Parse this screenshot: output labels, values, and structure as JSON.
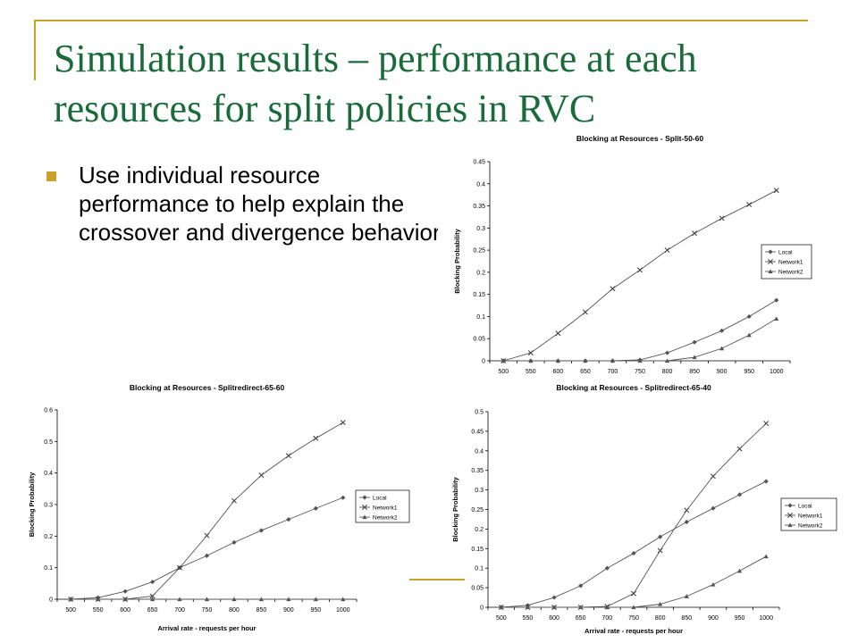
{
  "slide": {
    "title": "Simulation results – performance at each resources for split policies in RVC",
    "bullet": "Use individual resource performance to help explain the crossover and divergence behavior",
    "colors": {
      "title": "#1a6b3a",
      "accent": "#c9a227"
    }
  },
  "chart_data": [
    {
      "type": "line",
      "title": "Blocking at Resources - Split-50-60",
      "xlabel": "",
      "ylabel": "Blocking Probability",
      "x": [
        500,
        550,
        600,
        650,
        700,
        750,
        800,
        850,
        900,
        950,
        1000
      ],
      "ylim": [
        0,
        0.45
      ],
      "yticks": [
        0,
        0.05,
        0.1,
        0.15,
        0.2,
        0.25,
        0.3,
        0.35,
        0.4,
        0.45
      ],
      "legend": "right",
      "series": [
        {
          "name": "Local",
          "marker": "diamond",
          "values": [
            0,
            0,
            0,
            0,
            0,
            0.002,
            0.018,
            0.042,
            0.068,
            0.1,
            0.137
          ]
        },
        {
          "name": "Network1",
          "marker": "x",
          "values": [
            0,
            0.018,
            0.062,
            0.11,
            0.163,
            0.205,
            0.25,
            0.288,
            0.322,
            0.353,
            0.385
          ]
        },
        {
          "name": "Network2",
          "marker": "triangle",
          "values": [
            0,
            0,
            0,
            0,
            0,
            0,
            0,
            0.008,
            0.028,
            0.058,
            0.095
          ]
        }
      ]
    },
    {
      "type": "line",
      "title": "Blocking at Resources - Splitredirect-65-60",
      "xlabel": "Arrival rate - requests per hour",
      "ylabel": "Blocking Probability",
      "x": [
        500,
        550,
        600,
        650,
        700,
        750,
        800,
        850,
        900,
        950,
        1000
      ],
      "ylim": [
        0,
        0.6
      ],
      "yticks": [
        0,
        0.1,
        0.2,
        0.3,
        0.4,
        0.5,
        0.6
      ],
      "legend": "right",
      "series": [
        {
          "name": "Local",
          "marker": "diamond",
          "values": [
            0,
            0.005,
            0.025,
            0.055,
            0.1,
            0.138,
            0.18,
            0.218,
            0.253,
            0.288,
            0.322
          ]
        },
        {
          "name": "Network1",
          "marker": "x",
          "values": [
            0,
            0,
            0,
            0.01,
            0.1,
            0.202,
            0.312,
            0.393,
            0.455,
            0.51,
            0.56
          ]
        },
        {
          "name": "Network2",
          "marker": "triangle",
          "values": [
            0,
            0,
            0,
            0,
            0,
            0,
            0,
            0,
            0,
            0,
            0
          ]
        }
      ]
    },
    {
      "type": "line",
      "title": "Blocking at Resources - Splitredirect-65-40",
      "xlabel": "Arrival rate - requests per hour",
      "ylabel": "Blocking Probability",
      "x": [
        500,
        550,
        600,
        650,
        700,
        750,
        800,
        850,
        900,
        950,
        1000
      ],
      "ylim": [
        0,
        0.5
      ],
      "yticks": [
        0,
        0.05,
        0.1,
        0.15,
        0.2,
        0.25,
        0.3,
        0.35,
        0.4,
        0.45,
        0.5
      ],
      "legend": "right",
      "series": [
        {
          "name": "Local",
          "marker": "diamond",
          "values": [
            0,
            0.005,
            0.025,
            0.055,
            0.1,
            0.138,
            0.18,
            0.218,
            0.253,
            0.288,
            0.322
          ]
        },
        {
          "name": "Network1",
          "marker": "x",
          "values": [
            0,
            0,
            0,
            0,
            0.002,
            0.035,
            0.145,
            0.248,
            0.335,
            0.405,
            0.47
          ]
        },
        {
          "name": "Network2",
          "marker": "triangle",
          "values": [
            0,
            0,
            0,
            0,
            0,
            0,
            0.008,
            0.028,
            0.058,
            0.093,
            0.13
          ]
        }
      ]
    }
  ]
}
